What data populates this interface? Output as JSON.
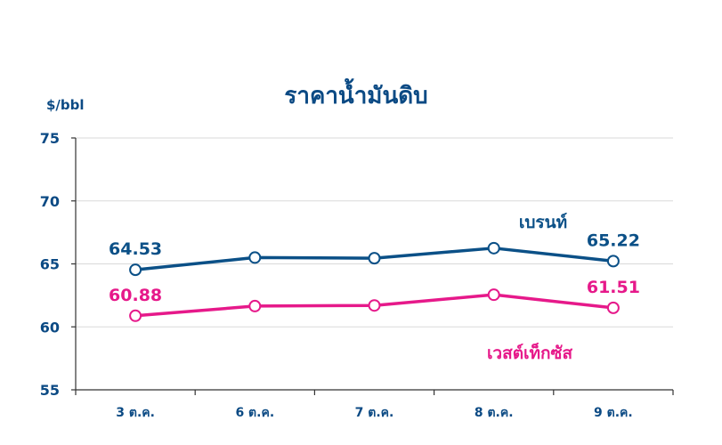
{
  "chart_data": {
    "type": "line",
    "title": "ราคาน้ำมันดิบ",
    "ylabel": "$/bbl",
    "xlabel": "",
    "categories": [
      "3 ต.ค.",
      "6 ต.ค.",
      "7 ต.ค.",
      "8 ต.ค.",
      "9 ต.ค."
    ],
    "ylim": [
      55,
      75
    ],
    "yticks": [
      55,
      60,
      65,
      70,
      75
    ],
    "grid": true,
    "legend": "inline",
    "series": [
      {
        "name": "เบรนท์",
        "color": "#0b5087",
        "values": [
          64.53,
          65.5,
          65.45,
          66.25,
          65.22
        ],
        "labels": [
          "64.53",
          "",
          "",
          "",
          "65.22"
        ]
      },
      {
        "name": "เวสต์เท็กซัส",
        "color": "#e6198a",
        "values": [
          60.88,
          61.65,
          61.7,
          62.55,
          61.51
        ],
        "labels": [
          "60.88",
          "",
          "",
          "",
          "61.51"
        ]
      }
    ]
  }
}
